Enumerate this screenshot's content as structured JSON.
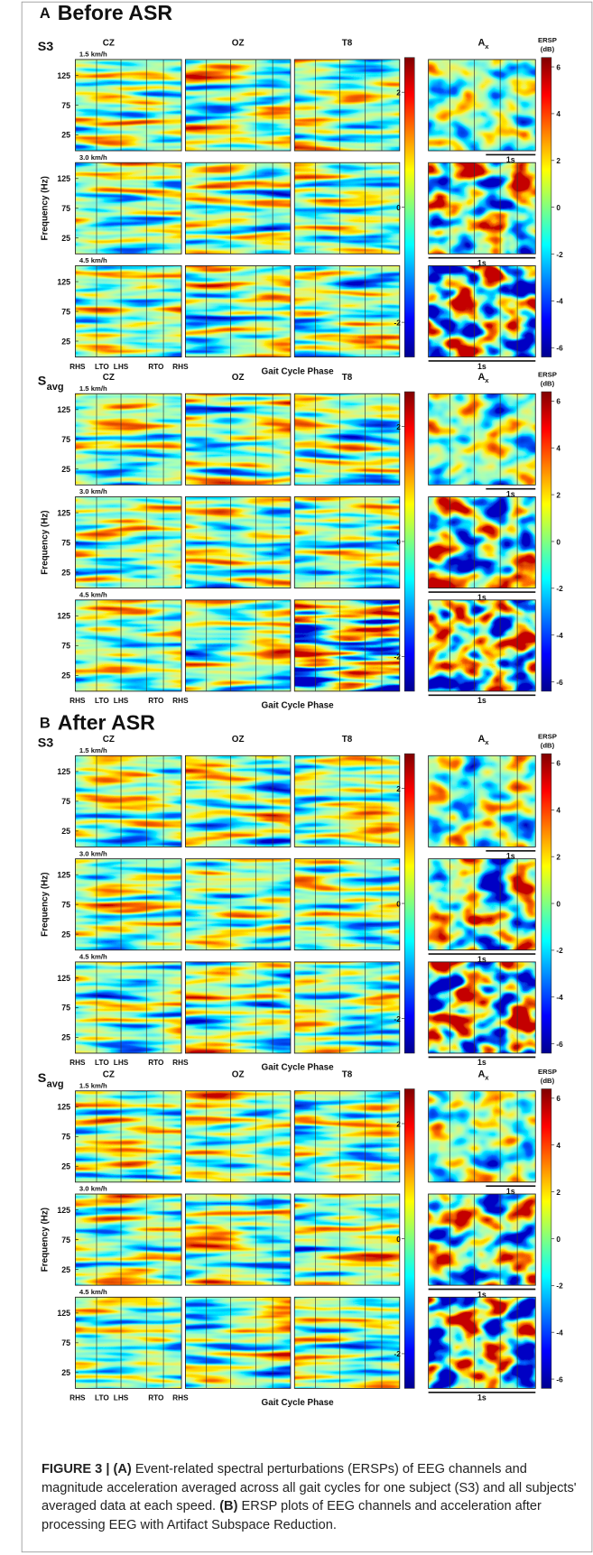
{
  "sections": [
    {
      "label": "A",
      "title": "Before ASR",
      "blocks": [
        {
          "subject": "S3"
        },
        {
          "subject": {
            "base": "S",
            "sub": "avg"
          }
        }
      ]
    },
    {
      "label": "B",
      "title": "After ASR",
      "blocks": [
        {
          "subject": "S3"
        },
        {
          "subject": {
            "base": "S",
            "sub": "avg"
          }
        }
      ]
    }
  ],
  "shared": {
    "channels": [
      "CZ",
      "OZ",
      "T8"
    ],
    "acc_label": {
      "base": "A",
      "sub": "x"
    },
    "colorbar_title": [
      "ERSP",
      "(dB)"
    ],
    "speeds": [
      "1.5 km/h",
      "3.0 km/h",
      "4.5 km/h"
    ],
    "freq_ticks": [
      125,
      75,
      25
    ],
    "y_label": "Frequency (Hz)",
    "x_ticks": [
      "RHS",
      "LTO",
      "LHS",
      "RTO",
      "RHS"
    ],
    "x_label": "Gait Cycle Phase",
    "eeg_colorbar_ticks": [
      2,
      0,
      -2
    ],
    "acc_colorbar_ticks": [
      6,
      4,
      2,
      0,
      -2,
      -4,
      -6
    ],
    "scale_bar": "1s"
  },
  "caption": {
    "label": "FIGURE 3 |",
    "parts": [
      {
        "bold": "(A)",
        "text": "Event-related spectral perturbations (ERSPs) of EEG channels and magnitude acceleration averaged across all gait cycles for one subject (S3) and all subjects' averaged data at each speed."
      },
      {
        "bold": "(B)",
        "text": "ERSP plots of EEG channels and acceleration after processing EEG with Artifact Subspace Reduction."
      }
    ]
  }
}
